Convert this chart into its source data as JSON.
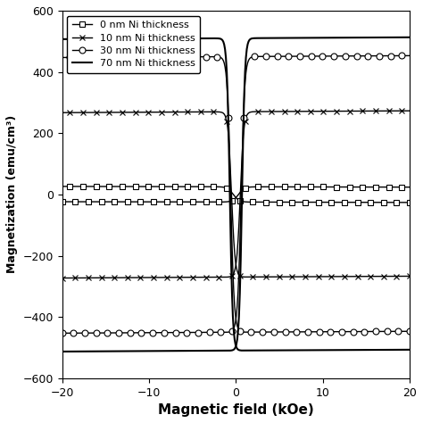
{
  "title": "",
  "xlabel": "Magnetic field (kOe)",
  "ylabel": "Magnetization (emu/cm³)",
  "xlim": [
    -20,
    20
  ],
  "ylim": [
    -600,
    600
  ],
  "xticks": [
    -20,
    -10,
    0,
    10,
    20
  ],
  "yticks": [
    -600,
    -400,
    -200,
    0,
    200,
    400,
    600
  ],
  "background_color": "#ffffff",
  "series": [
    {
      "label": "0 nm Ni thickness",
      "marker": "s",
      "Ms": 25,
      "Hc": 0.3,
      "sharpness": 1.5,
      "slope": -1.2,
      "markevery": 15,
      "ms": 4,
      "lw": 1.0,
      "mfc": "white"
    },
    {
      "label": "10 nm Ni thickness",
      "marker": "x",
      "Ms": 270,
      "Hc": 0.5,
      "sharpness": 2.5,
      "slope": 3.0,
      "markevery": 15,
      "ms": 5,
      "lw": 1.0,
      "mfc": "black"
    },
    {
      "label": "30 nm Ni thickness",
      "marker": "o",
      "Ms": 450,
      "Hc": 0.6,
      "sharpness": 2.5,
      "slope": 3.0,
      "markevery": 13,
      "ms": 5,
      "lw": 1.0,
      "mfc": "white"
    },
    {
      "label": "70 nm Ni thickness",
      "marker": null,
      "Ms": 510,
      "Hc": 0.7,
      "sharpness": 3.0,
      "slope": 3.0,
      "markevery": 1,
      "ms": 0,
      "lw": 1.5,
      "mfc": "black"
    }
  ]
}
